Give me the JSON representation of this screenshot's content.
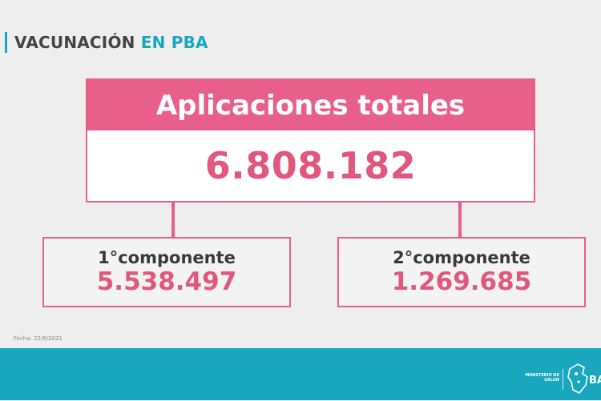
{
  "title": {
    "prefix": "VACUNACIÓN",
    "highlight": "EN PBA"
  },
  "total": {
    "label": "Aplicaciones totales",
    "value": "6.808.182"
  },
  "components": [
    {
      "label": "1°componente",
      "value": "5.538.497"
    },
    {
      "label": "2°componente",
      "value": "1.269.685"
    }
  ],
  "date_note": "Fecha: 22/6/2021",
  "footer": {
    "ministry": "MINISTERIO DE SALUD",
    "logo_text": "BA"
  },
  "colors": {
    "accent_pink": "#e85f8b",
    "value_pink": "#e0577f",
    "accent_teal": "#19a7bd",
    "background": "#eeeeee"
  }
}
